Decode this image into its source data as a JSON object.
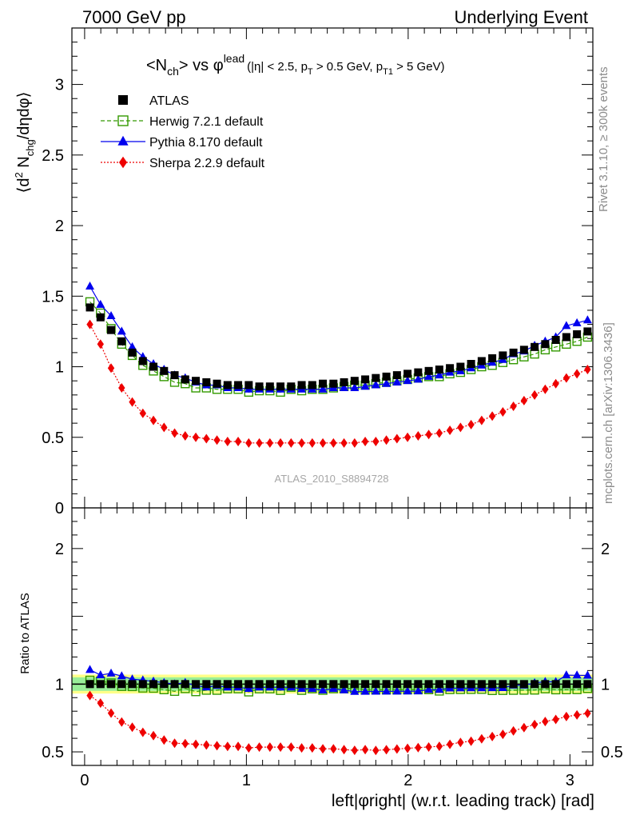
{
  "header": {
    "left_title": "7000 GeV pp",
    "right_title": "Underlying Event"
  },
  "side_labels": {
    "rivet": "Rivet 3.1.10, ≥ 300k events",
    "mcplots": "mcplots.cern.ch [arXiv:1306.3436]"
  },
  "plot_title": {
    "main": "<N",
    "main_sub": "ch",
    "main_rest": "> vs φ",
    "main_sup": "lead",
    "cut1": "(|η| < 2.5, p",
    "cut1_sub": "T",
    "cut2": " > 0.5 GeV, p",
    "cut2_sub": "T1",
    "cut3": " > 5 GeV)"
  },
  "analysis_label": "ATLAS_2010_S8894728",
  "ylabel_top": {
    "a": "⟨d",
    "sup": "2",
    "b": " N",
    "sub": "chg",
    "c": "/dηdφ⟩"
  },
  "ylabel_bottom": "Ratio to ATLAS",
  "xlabel": "left|φright| (w.r.t. leading track) [rad]",
  "legend": [
    {
      "label": "ATLAS",
      "color": "#000000",
      "marker": "filled-square"
    },
    {
      "label": "Herwig 7.2.1 default",
      "color": "#339900",
      "marker": "open-square",
      "dash": "dashed"
    },
    {
      "label": "Pythia 8.170 default",
      "color": "#0000ee",
      "marker": "filled-triangle",
      "dash": "solid"
    },
    {
      "label": "Sherpa 2.2.9 default",
      "color": "#ee0000",
      "marker": "filled-diamond",
      "dash": "dotted"
    }
  ],
  "chart_data": {
    "type": "scatter",
    "x": [
      0.0327,
      0.0982,
      0.1636,
      0.2291,
      0.2945,
      0.36,
      0.4254,
      0.4909,
      0.5563,
      0.6218,
      0.6872,
      0.7527,
      0.8181,
      0.8836,
      0.949,
      1.0145,
      1.0799,
      1.1454,
      1.2108,
      1.2763,
      1.3417,
      1.4072,
      1.4726,
      1.5381,
      1.6035,
      1.669,
      1.7344,
      1.7999,
      1.8653,
      1.9308,
      1.9962,
      2.0617,
      2.1271,
      2.1926,
      2.258,
      2.3235,
      2.3889,
      2.4544,
      2.5198,
      2.5853,
      2.6507,
      2.7162,
      2.7816,
      2.8471,
      2.9125,
      2.978,
      3.0434,
      3.1089
    ],
    "xlim": [
      -0.0786,
      3.1416
    ],
    "xticks": [
      0,
      1,
      2,
      3
    ],
    "series": [
      {
        "name": "ATLAS",
        "values": [
          1.42,
          1.35,
          1.26,
          1.18,
          1.1,
          1.04,
          1.0,
          0.97,
          0.94,
          0.91,
          0.9,
          0.89,
          0.88,
          0.87,
          0.87,
          0.87,
          0.86,
          0.86,
          0.86,
          0.86,
          0.87,
          0.87,
          0.88,
          0.88,
          0.89,
          0.9,
          0.91,
          0.92,
          0.93,
          0.94,
          0.95,
          0.96,
          0.97,
          0.98,
          0.99,
          1.0,
          1.02,
          1.04,
          1.06,
          1.08,
          1.1,
          1.12,
          1.14,
          1.16,
          1.19,
          1.21,
          1.23,
          1.25
        ]
      },
      {
        "name": "Herwig 7.2.1 default",
        "values": [
          1.46,
          1.38,
          1.27,
          1.16,
          1.08,
          1.01,
          0.97,
          0.93,
          0.89,
          0.88,
          0.85,
          0.85,
          0.84,
          0.84,
          0.84,
          0.82,
          0.83,
          0.83,
          0.82,
          0.84,
          0.83,
          0.84,
          0.84,
          0.85,
          0.86,
          0.87,
          0.87,
          0.88,
          0.89,
          0.9,
          0.91,
          0.92,
          0.93,
          0.93,
          0.95,
          0.96,
          0.98,
          1.0,
          1.01,
          1.03,
          1.05,
          1.07,
          1.09,
          1.12,
          1.14,
          1.16,
          1.18,
          1.21
        ]
      },
      {
        "name": "Pythia 8.170 default",
        "values": [
          1.57,
          1.44,
          1.36,
          1.25,
          1.14,
          1.07,
          1.02,
          0.98,
          0.94,
          0.92,
          0.89,
          0.87,
          0.87,
          0.85,
          0.85,
          0.84,
          0.84,
          0.84,
          0.84,
          0.84,
          0.84,
          0.84,
          0.84,
          0.85,
          0.85,
          0.85,
          0.86,
          0.87,
          0.88,
          0.89,
          0.9,
          0.91,
          0.93,
          0.94,
          0.96,
          0.97,
          0.99,
          1.01,
          1.03,
          1.05,
          1.09,
          1.11,
          1.15,
          1.18,
          1.21,
          1.29,
          1.31,
          1.33
        ]
      },
      {
        "name": "Sherpa 2.2.9 default",
        "values": [
          1.3,
          1.16,
          0.99,
          0.85,
          0.75,
          0.67,
          0.62,
          0.57,
          0.53,
          0.51,
          0.5,
          0.49,
          0.48,
          0.47,
          0.47,
          0.46,
          0.46,
          0.46,
          0.46,
          0.46,
          0.46,
          0.46,
          0.46,
          0.46,
          0.46,
          0.46,
          0.47,
          0.47,
          0.48,
          0.49,
          0.5,
          0.51,
          0.52,
          0.53,
          0.55,
          0.57,
          0.59,
          0.62,
          0.65,
          0.68,
          0.72,
          0.76,
          0.8,
          0.84,
          0.88,
          0.92,
          0.95,
          0.98
        ]
      }
    ],
    "main_panel": {
      "ylim": [
        0,
        3.4
      ],
      "yticks": [
        0,
        0.5,
        1,
        1.5,
        2,
        2.5,
        3
      ]
    },
    "ratio_panel": {
      "ylim": [
        0.4,
        2.3
      ],
      "yticks": [
        0.5,
        1,
        2
      ],
      "band_inner": [
        0.95,
        1.05
      ],
      "band_outer": [
        0.93,
        1.07
      ],
      "band_inner_color": "#99ee99",
      "band_outer_color": "#ffff88"
    }
  }
}
